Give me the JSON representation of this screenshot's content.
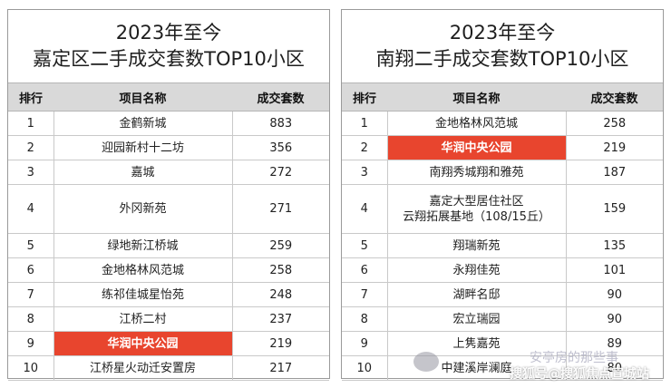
{
  "left": {
    "title_line1": "2023年至今",
    "title_line2": "嘉定区二手成交套数TOP10小区",
    "headers": [
      "排行",
      "项目名称",
      "成交套数"
    ],
    "rows": [
      {
        "rank": "1",
        "name": "金鹤新城",
        "count": "883"
      },
      {
        "rank": "2",
        "name": "迎园新村十二坊",
        "count": "356"
      },
      {
        "rank": "3",
        "name": "嘉城",
        "count": "272"
      },
      {
        "rank": "4",
        "name": "外冈新苑",
        "count": "271"
      },
      {
        "rank": "5",
        "name": "绿地新江桥城",
        "count": "259"
      },
      {
        "rank": "6",
        "name": "金地格林风范城",
        "count": "258"
      },
      {
        "rank": "7",
        "name": "练祁佳城星怡苑",
        "count": "248"
      },
      {
        "rank": "8",
        "name": "江桥二村",
        "count": "237"
      },
      {
        "rank": "9",
        "name": "华润中央公园",
        "count": "219"
      },
      {
        "rank": "10",
        "name": "江桥星火动迁安置房",
        "count": "217"
      }
    ]
  },
  "right": {
    "title_line1": "2023年至今",
    "title_line2": "南翔二手成交套数TOP10小区",
    "headers": [
      "排行",
      "项目名称",
      "成交套数"
    ],
    "rows": [
      {
        "rank": "1",
        "name": "金地格林风范城",
        "count": "258"
      },
      {
        "rank": "2",
        "name": "华润中央公园",
        "count": "219"
      },
      {
        "rank": "3",
        "name": "南翔秀城翔和雅苑",
        "count": "187"
      },
      {
        "rank": "4",
        "name_line1": "嘉定大型居住社区",
        "name_line2": "云翔拓展基地（108/15丘）",
        "count": "159"
      },
      {
        "rank": "5",
        "name": "翔瑞新苑",
        "count": "135"
      },
      {
        "rank": "6",
        "name": "永翔佳苑",
        "count": "101"
      },
      {
        "rank": "7",
        "name": "湖畔名邸",
        "count": "90"
      },
      {
        "rank": "8",
        "name": "宏立瑞园",
        "count": "90"
      },
      {
        "rank": "9",
        "name": "上隽嘉苑",
        "count": "89"
      },
      {
        "rank": "10",
        "name": "中建溪岸澜庭",
        "count": "80"
      }
    ]
  },
  "highlight_color": "#e8452e",
  "watermark": {
    "top": "安亭房的那些事",
    "bottom": "搜狐号@搜狐焦点宣城站"
  }
}
